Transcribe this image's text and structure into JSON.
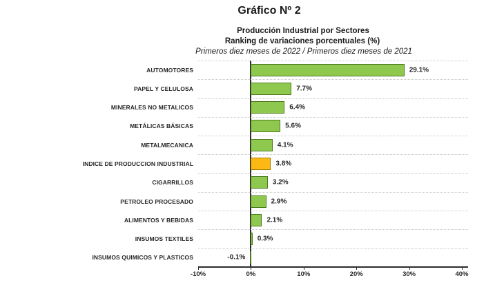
{
  "header": {
    "title": "Gráfico Nº 2",
    "subtitle1": "Producción Industrial por Sectores",
    "subtitle2": "Ranking de variaciones porcentuales (%)",
    "subtitle3": "Primeros diez meses de 2022 / Primeros diez meses de 2021"
  },
  "chart_data": {
    "type": "bar",
    "orientation": "horizontal",
    "title": "Producción Industrial por Sectores",
    "subtitle": "Ranking de variaciones porcentuales (%)",
    "period_note": "Primeros diez meses de 2022 / Primeros diez meses de 2021",
    "categories": [
      "AUTOMOTORES",
      "PAPEL Y CELULOSA",
      "MINERALES NO METALICOS",
      "METÁLICAS BÁSICAS",
      "METALMECANICA",
      "INDICE DE PRODUCCION INDUSTRIAL",
      "CIGARRILLOS",
      "PETROLEO PROCESADO",
      "ALIMENTOS Y BEBIDAS",
      "INSUMOS TEXTILES",
      "INSUMOS QUIMICOS Y PLASTICOS"
    ],
    "values": [
      29.1,
      7.7,
      6.4,
      5.6,
      4.1,
      3.8,
      3.2,
      2.9,
      2.1,
      0.3,
      -0.1
    ],
    "value_labels": [
      "29.1%",
      "7.7%",
      "6.4%",
      "5.6%",
      "4.1%",
      "3.8%",
      "3.2%",
      "2.9%",
      "2.1%",
      "0.3%",
      "-0.1%"
    ],
    "highlight_index": 5,
    "highlight_category": "INDICE DE PRODUCCION INDUSTRIAL",
    "xlabel": "",
    "ylabel": "",
    "xlim": [
      -10,
      40
    ],
    "x_ticks": [
      "-10%",
      "0%",
      "10%",
      "20%",
      "30%",
      "40%"
    ],
    "x_tick_values": [
      -10,
      0,
      10,
      20,
      30,
      40
    ],
    "grid": "horizontal-dotted",
    "legend": "none",
    "colors": {
      "bar_fill": "#8fc84e",
      "bar_border": "#4e7a1f",
      "highlight_fill": "#fcb813",
      "highlight_border": "#a67c00",
      "gridline": "#c6c6c6",
      "axis": "#2b2b2b",
      "text": "#262626"
    }
  }
}
